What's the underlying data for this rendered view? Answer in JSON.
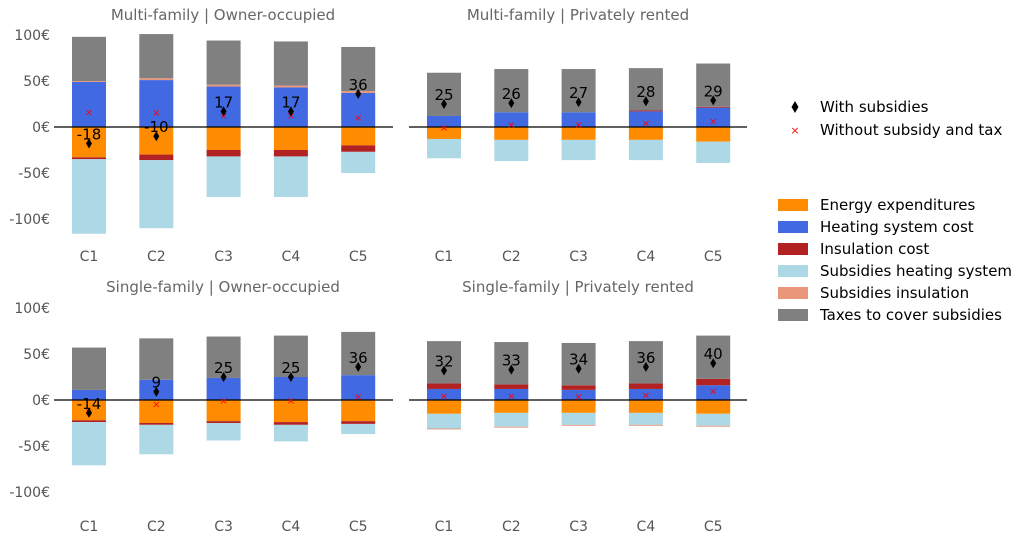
{
  "chart_data": {
    "type": "bar",
    "stacked": true,
    "categories": [
      "C1",
      "C2",
      "C3",
      "C4",
      "C5"
    ],
    "y_tick_labels": [
      "100€",
      "50€",
      "0€",
      "-50€",
      "-100€"
    ],
    "y_ticks": [
      100,
      50,
      0,
      -50,
      -100
    ],
    "ylim": [
      -115,
      103
    ],
    "colors": {
      "energy": "#ff8c00",
      "heating": "#4169e1",
      "insulation": "#b22222",
      "sub_heating": "#add8e6",
      "sub_insulation": "#e9967a",
      "taxes": "#808080",
      "with_marker": "#000000",
      "without_marker": "#ff0000"
    },
    "legend_markers": [
      {
        "key": "with",
        "label": "With subsidies",
        "symbol": "♦"
      },
      {
        "key": "without",
        "label": "Without subsidy and tax",
        "symbol": "×"
      }
    ],
    "legend_series": [
      {
        "key": "energy",
        "label": "Energy expenditures"
      },
      {
        "key": "heating",
        "label": "Heating system cost"
      },
      {
        "key": "insulation",
        "label": "Insulation cost"
      },
      {
        "key": "sub_heating",
        "label": "Subsidies heating system"
      },
      {
        "key": "sub_insulation",
        "label": "Subsidies insulation"
      },
      {
        "key": "taxes",
        "label": "Taxes to cover subsidies"
      }
    ],
    "panels": [
      {
        "title": "Multi-family | Owner-occupied",
        "series": {
          "heating": [
            49,
            51,
            44,
            43,
            37
          ],
          "sub_insulation": [
            1,
            2,
            2,
            2,
            2
          ],
          "taxes": [
            48,
            48,
            48,
            48,
            48
          ],
          "energy": [
            -33,
            -30,
            -25,
            -25,
            -20
          ],
          "insulation": [
            -2,
            -6,
            -7,
            -7,
            -7
          ],
          "sub_heating": [
            -81,
            -74,
            -44,
            -44,
            -23
          ]
        },
        "with_subsidies": [
          -18,
          -10,
          17,
          17,
          36
        ],
        "without_subsidy_tax": [
          16,
          15,
          12,
          12,
          10
        ],
        "labels": [
          "-18",
          "-10",
          "17",
          "17",
          "36"
        ]
      },
      {
        "title": "Multi-family | Privately rented",
        "series": {
          "heating": [
            12,
            16,
            16,
            17,
            21
          ],
          "insulation": [
            0,
            0,
            0,
            1,
            1
          ],
          "taxes": [
            47,
            47,
            47,
            46,
            47
          ],
          "energy": [
            -13,
            -14,
            -14,
            -14,
            -16
          ],
          "sub_heating": [
            -21,
            -23,
            -22,
            -22,
            -23
          ]
        },
        "with_subsidies": [
          25,
          26,
          27,
          28,
          29
        ],
        "without_subsidy_tax": [
          -1,
          2,
          2,
          4,
          6
        ],
        "labels": [
          "25",
          "26",
          "27",
          "28",
          "29"
        ]
      },
      {
        "title": "Single-family | Owner-occupied",
        "series": {
          "heating": [
            11,
            22,
            24,
            25,
            27
          ],
          "taxes": [
            46,
            45,
            45,
            45,
            47
          ],
          "energy": [
            -22,
            -25,
            -23,
            -24,
            -23
          ],
          "insulation": [
            -2,
            -2,
            -2,
            -3,
            -3
          ],
          "sub_heating": [
            -47,
            -32,
            -19,
            -18,
            -11
          ]
        },
        "with_subsidies": [
          -14,
          9,
          25,
          25,
          36
        ],
        "without_subsidy_tax": [
          -13,
          -5,
          -1,
          -1,
          3
        ],
        "labels": [
          "-14",
          "9",
          "25",
          "25",
          "36"
        ]
      },
      {
        "title": "Single-family | Privately rented",
        "series": {
          "heating": [
            12,
            12,
            11,
            12,
            16
          ],
          "insulation": [
            6,
            5,
            5,
            6,
            7
          ],
          "taxes": [
            46,
            46,
            46,
            46,
            47
          ],
          "energy": [
            -15,
            -14,
            -14,
            -14,
            -15
          ],
          "sub_heating": [
            -16,
            -15,
            -13,
            -13,
            -13
          ],
          "sub_insulation": [
            -1,
            -1,
            -1,
            -1,
            -1
          ]
        },
        "with_subsidies": [
          32,
          33,
          34,
          36,
          40
        ],
        "without_subsidy_tax": [
          4,
          4,
          3,
          5,
          9
        ],
        "labels": [
          "32",
          "33",
          "34",
          "36",
          "40"
        ]
      }
    ]
  }
}
